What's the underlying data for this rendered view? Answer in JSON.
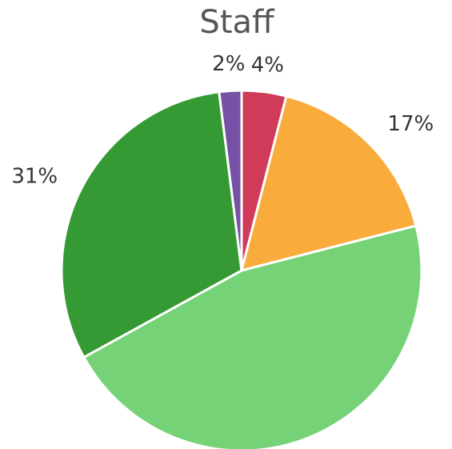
{
  "chart_data": {
    "type": "pie",
    "title": "Staff",
    "values": [
      4,
      17,
      46,
      31,
      2
    ],
    "value_labels": [
      "4%",
      "17%",
      null,
      "31%",
      "2%"
    ],
    "colors": [
      "#d13b5a",
      "#f9ab3c",
      "#76d277",
      "#359a34",
      "#7651a5"
    ]
  }
}
